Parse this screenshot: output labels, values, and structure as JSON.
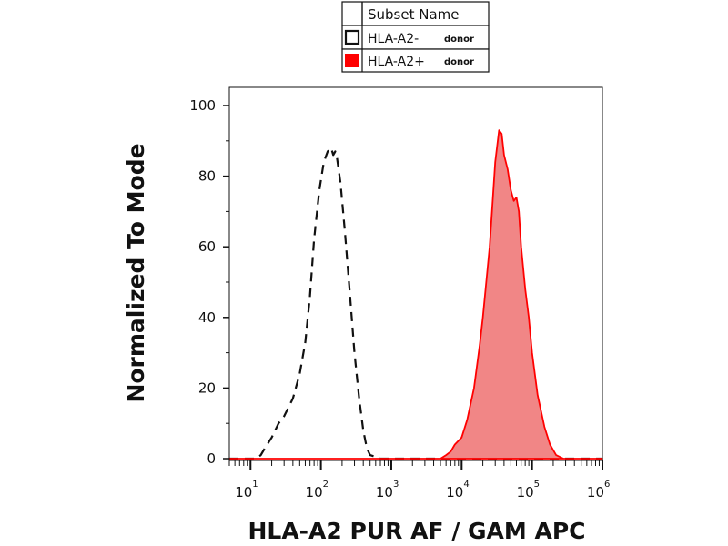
{
  "chart_data": {
    "type": "area",
    "xlabel": "HLA-A2 PUR AF / GAM APC",
    "ylabel": "Normalized To Mode",
    "x_scale": "log",
    "xlim": [
      5,
      1000000
    ],
    "ylim": [
      0,
      100
    ],
    "x_tick_labels": [
      {
        "base": "10",
        "exp": "1"
      },
      {
        "base": "10",
        "exp": "2"
      },
      {
        "base": "10",
        "exp": "3"
      },
      {
        "base": "10",
        "exp": "4"
      },
      {
        "base": "10",
        "exp": "5"
      },
      {
        "base": "10",
        "exp": "6"
      }
    ],
    "y_ticks": [
      0,
      20,
      40,
      60,
      80,
      100
    ],
    "grid": false,
    "legend": {
      "placement": "top-center",
      "header": "Subset Name",
      "entries": [
        {
          "label": "HLA-A2-",
          "suffix": "donor",
          "swatch_color": "#ffffff"
        },
        {
          "label": "HLA-A2+",
          "suffix": "donor",
          "swatch_color": "#ff0000"
        }
      ]
    },
    "series": [
      {
        "label": "HLA-A2-",
        "style": "dashed",
        "color": "#111111",
        "x": [
          5,
          12,
          14,
          16,
          20,
          25,
          30,
          40,
          50,
          60,
          70,
          80,
          95,
          110,
          125,
          140,
          150,
          160,
          170,
          190,
          220,
          260,
          300,
          350,
          400,
          450,
          500,
          600,
          700,
          800,
          1000,
          1000000
        ],
        "y": [
          0,
          0,
          1,
          3,
          6,
          10,
          12,
          17,
          24,
          33,
          46,
          62,
          76,
          84,
          87,
          88,
          86,
          87,
          85,
          78,
          64,
          46,
          30,
          17,
          8,
          3,
          1,
          0.5,
          0,
          0,
          0,
          0
        ]
      },
      {
        "label": "HLA-A2+",
        "style": "filled",
        "color": "#ff0000",
        "fill": "#f08080",
        "x": [
          5,
          5000,
          6000,
          7000,
          8000,
          10000,
          12000,
          15000,
          18000,
          20000,
          25000,
          30000,
          34000,
          37000,
          40000,
          45000,
          50000,
          55000,
          60000,
          65000,
          70000,
          80000,
          90000,
          100000,
          120000,
          150000,
          180000,
          220000,
          280000,
          1000000
        ],
        "y": [
          0,
          0,
          1,
          2,
          4,
          6,
          11,
          20,
          32,
          40,
          60,
          84,
          93,
          92,
          86,
          82,
          76,
          73,
          74,
          70,
          60,
          48,
          40,
          30,
          18,
          9,
          4,
          1,
          0,
          0
        ]
      }
    ]
  }
}
